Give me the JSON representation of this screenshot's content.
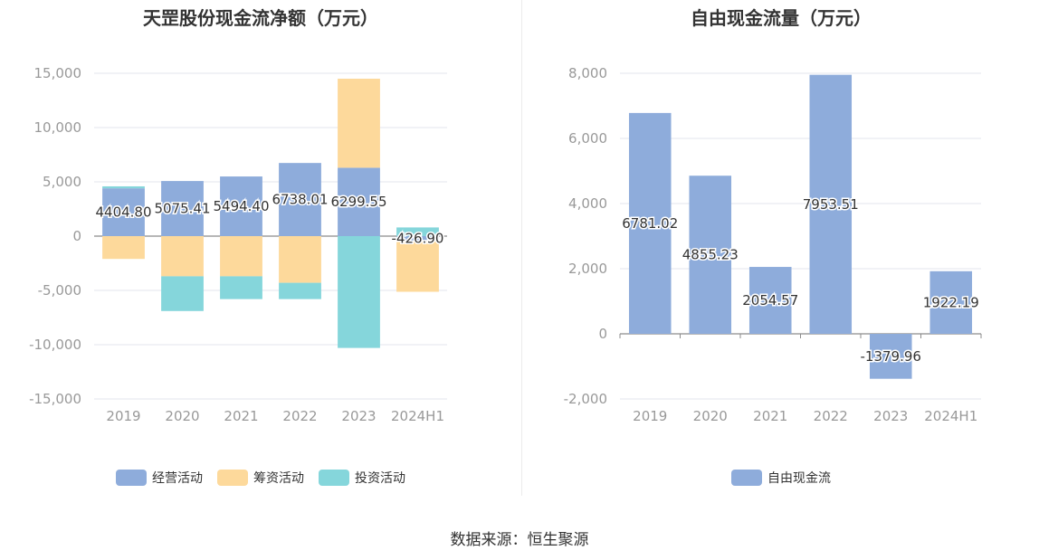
{
  "source_text": "数据来源：恒生聚源",
  "chart_data": [
    {
      "type": "bar",
      "stacked": true,
      "title": "天罡股份现金流净额（万元）",
      "categories": [
        "2019",
        "2020",
        "2021",
        "2022",
        "2023",
        "2024H1"
      ],
      "ylim": [
        -15000,
        15000
      ],
      "yticks": [
        15000,
        10000,
        5000,
        0,
        -5000,
        -10000,
        -15000
      ],
      "ytick_labels": [
        "15,000",
        "10,000",
        "5,000",
        "0",
        "-5,000",
        "-10,000",
        "-15,000"
      ],
      "grid": true,
      "legend_position": "bottom",
      "series": [
        {
          "name": "经营活动",
          "color": "#8eacdb",
          "values": [
            4404.8,
            5075.41,
            5494.4,
            6738.01,
            6299.55,
            -426.9
          ],
          "data_labels": [
            "4404.80",
            "5075.41",
            "5494.40",
            "6738.01",
            "6299.55",
            "-426.90"
          ]
        },
        {
          "name": "筹资活动",
          "color": "#fdd99b",
          "values": [
            -2100,
            -3700,
            -3700,
            -4300,
            8200,
            -4700
          ]
        },
        {
          "name": "投资活动",
          "color": "#85d6db",
          "values": [
            180,
            -3200,
            -2100,
            -1500,
            -10300,
            800
          ]
        }
      ]
    },
    {
      "type": "bar",
      "title": "自由现金流量（万元）",
      "categories": [
        "2019",
        "2020",
        "2021",
        "2022",
        "2023",
        "2024H1"
      ],
      "ylim": [
        -2000,
        8000
      ],
      "yticks": [
        8000,
        6000,
        4000,
        2000,
        0,
        -2000
      ],
      "ytick_labels": [
        "8,000",
        "6,000",
        "4,000",
        "2,000",
        "0",
        "-2,000"
      ],
      "grid": true,
      "legend_position": "bottom",
      "series": [
        {
          "name": "自由现金流",
          "color": "#8eacdb",
          "values": [
            6781.02,
            4855.23,
            2054.57,
            7953.51,
            -1379.96,
            1922.19
          ],
          "data_labels": [
            "6781.02",
            "4855.23",
            "2054.57",
            "7953.51",
            "-1379.96",
            "1922.19"
          ]
        }
      ]
    }
  ]
}
